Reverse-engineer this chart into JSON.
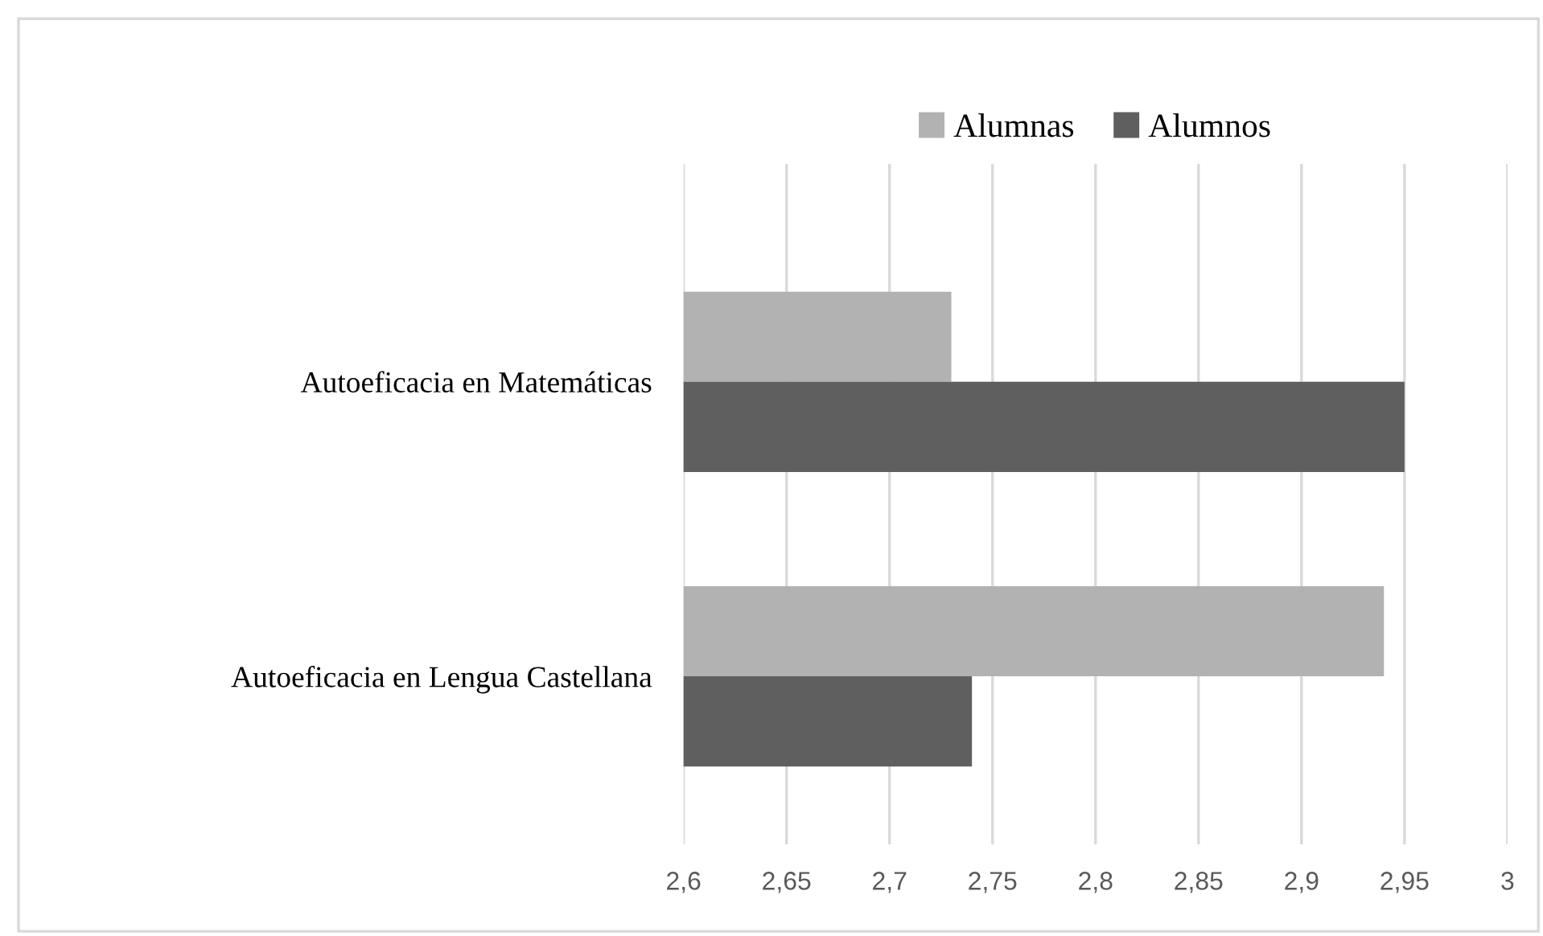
{
  "chart_data": {
    "type": "bar",
    "orientation": "horizontal",
    "categories": [
      "Autoeficacia en Matemáticas",
      "Autoeficacia en Lengua Castellana"
    ],
    "series": [
      {
        "name": "Alumnas",
        "color": "#b2b2b2",
        "values": [
          2.73,
          2.94
        ]
      },
      {
        "name": "Alumnos",
        "color": "#5f5f5f",
        "values": [
          2.95,
          2.74
        ]
      }
    ],
    "xlim": [
      2.6,
      3
    ],
    "xticks": [
      {
        "value": 2.6,
        "label": "2,6"
      },
      {
        "value": 2.65,
        "label": "2,65"
      },
      {
        "value": 2.7,
        "label": "2,7"
      },
      {
        "value": 2.75,
        "label": "2,75"
      },
      {
        "value": 2.8,
        "label": "2,8"
      },
      {
        "value": 2.85,
        "label": "2,85"
      },
      {
        "value": 2.9,
        "label": "2,9"
      },
      {
        "value": 2.95,
        "label": "2,95"
      },
      {
        "value": 3,
        "label": "3"
      }
    ],
    "grid": "x",
    "legend": "top"
  }
}
